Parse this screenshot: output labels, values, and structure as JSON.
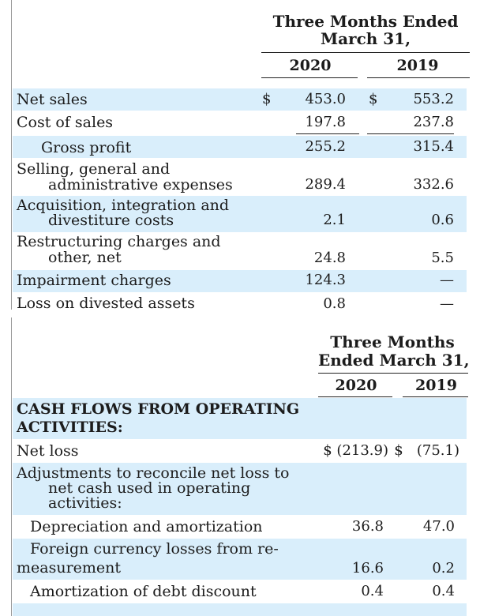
{
  "income": {
    "header_line1": "Three Months Ended",
    "header_line2": "March 31,",
    "col1": "2020",
    "col2": "2019",
    "rows": [
      {
        "label": [
          "Net sales"
        ],
        "cur1": "$",
        "v1": "453.0",
        "cur2": "$",
        "v2": "553.2"
      },
      {
        "label": [
          "Cost of sales"
        ],
        "v1": "197.8",
        "v2": "237.8"
      },
      {
        "label": [
          "Gross profit"
        ],
        "v1": "255.2",
        "v2": "315.4"
      },
      {
        "label": [
          "Selling, general and",
          "administrative expenses"
        ],
        "v1": "289.4",
        "v2": "332.6"
      },
      {
        "label": [
          "Acquisition, integration and",
          "divestiture costs"
        ],
        "v1": "2.1",
        "v2": "0.6"
      },
      {
        "label": [
          "Restructuring charges and",
          "other, net"
        ],
        "v1": "24.8",
        "v2": "5.5"
      },
      {
        "label": [
          "Impairment charges"
        ],
        "v1": "124.3",
        "v2": "—"
      },
      {
        "label": [
          "Loss on divested assets"
        ],
        "v1": "0.8",
        "v2": "—"
      }
    ]
  },
  "cashflow": {
    "header_line1": "Three Months",
    "header_line2": "Ended March 31,",
    "col1": "2020",
    "col2": "2019",
    "rows": [
      {
        "label": [
          "CASH FLOWS FROM OPERATING",
          "ACTIVITIES:"
        ]
      },
      {
        "label": [
          "Net loss"
        ],
        "v1": "$ (213.9)",
        "v2": "$   (75.1)"
      },
      {
        "label": [
          "Adjustments to reconcile net loss to",
          "net cash used in operating",
          "activities:"
        ]
      },
      {
        "label": [
          "Depreciation and amortization"
        ],
        "v1": "36.8",
        "v2": "47.0"
      },
      {
        "label": [
          "Foreign currency losses from re-",
          "measurement"
        ],
        "v1": "16.6",
        "v2": "0.2"
      },
      {
        "label": [
          "Amortization of debt discount"
        ],
        "v1": "0.4",
        "v2": "0.4"
      }
    ]
  }
}
